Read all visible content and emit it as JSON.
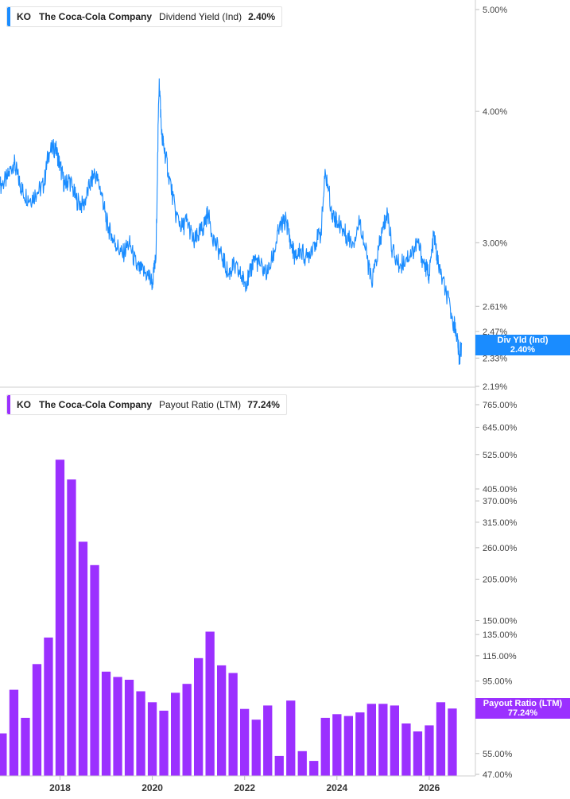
{
  "legends": [
    {
      "ticker": "KO",
      "company": "The Coca-Cola Company",
      "metric": "Dividend Yield (Ind)",
      "value": "2.40%",
      "color": "#1a8cff"
    },
    {
      "ticker": "KO",
      "company": "The Coca-Cola Company",
      "metric": "Payout Ratio (LTM)",
      "value": "77.24%",
      "color": "#9b30ff"
    }
  ],
  "badges": [
    {
      "line1": "Div Yld (Ind)",
      "line2": "2.40%",
      "color": "#1a8cff"
    },
    {
      "line1": "Payout Ratio (LTM)",
      "line2": "77.24%",
      "color": "#9b30ff"
    }
  ],
  "chart_data": [
    {
      "type": "line",
      "title": "",
      "series_label": "Dividend Yield (Ind)",
      "color": "#1a8cff",
      "y_scale": "log",
      "ylim": [
        2.19,
        5.0
      ],
      "y_ticks": [
        {
          "value": 5.0,
          "label": "5.00%"
        },
        {
          "value": 4.0,
          "label": "4.00%"
        },
        {
          "value": 3.0,
          "label": "3.00%"
        },
        {
          "value": 2.61,
          "label": "2.61%"
        },
        {
          "value": 2.47,
          "label": "2.47%"
        },
        {
          "value": 2.33,
          "label": "2.33%"
        },
        {
          "value": 2.19,
          "label": "2.19%"
        }
      ],
      "xlim": [
        2016.7,
        2027.0
      ],
      "x_ticks": [
        {
          "value": 2018,
          "label": "2018"
        },
        {
          "value": 2020,
          "label": "2020"
        },
        {
          "value": 2022,
          "label": "2022"
        },
        {
          "value": 2024,
          "label": "2024"
        },
        {
          "value": 2026,
          "label": "2026"
        }
      ],
      "x": [
        2016.7,
        2016.85,
        2017.0,
        2017.1,
        2017.2,
        2017.35,
        2017.5,
        2017.65,
        2017.75,
        2017.9,
        2018.0,
        2018.1,
        2018.2,
        2018.35,
        2018.5,
        2018.65,
        2018.75,
        2018.9,
        2019.0,
        2019.1,
        2019.2,
        2019.35,
        2019.5,
        2019.65,
        2019.75,
        2019.9,
        2020.0,
        2020.08,
        2020.15,
        2020.2,
        2020.25,
        2020.35,
        2020.5,
        2020.65,
        2020.75,
        2020.9,
        2021.0,
        2021.1,
        2021.2,
        2021.35,
        2021.5,
        2021.65,
        2021.75,
        2021.9,
        2022.0,
        2022.1,
        2022.2,
        2022.35,
        2022.5,
        2022.65,
        2022.75,
        2022.9,
        2023.0,
        2023.1,
        2023.2,
        2023.35,
        2023.5,
        2023.65,
        2023.75,
        2023.9,
        2024.0,
        2024.1,
        2024.2,
        2024.35,
        2024.5,
        2024.65,
        2024.75,
        2024.9,
        2025.0,
        2025.1,
        2025.2,
        2025.35,
        2025.5,
        2025.65,
        2025.75,
        2025.9,
        2026.0,
        2026.1,
        2026.2,
        2026.35,
        2026.5,
        2026.6,
        2026.65,
        2026.7
      ],
      "y": [
        3.4,
        3.45,
        3.58,
        3.45,
        3.35,
        3.3,
        3.35,
        3.4,
        3.65,
        3.7,
        3.55,
        3.4,
        3.45,
        3.3,
        3.25,
        3.4,
        3.5,
        3.35,
        3.15,
        3.05,
        3.0,
        2.92,
        3.0,
        2.85,
        2.82,
        2.8,
        2.75,
        2.9,
        4.3,
        3.8,
        3.7,
        3.5,
        3.2,
        3.1,
        3.15,
        3.0,
        3.05,
        3.1,
        3.2,
        3.0,
        2.92,
        2.8,
        2.85,
        2.8,
        2.75,
        2.78,
        2.9,
        2.85,
        2.8,
        2.95,
        3.1,
        3.15,
        3.0,
        2.9,
        2.95,
        2.9,
        3.0,
        3.05,
        3.5,
        3.2,
        3.15,
        3.1,
        3.05,
        3.0,
        3.15,
        2.9,
        2.75,
        2.95,
        3.1,
        3.2,
        2.95,
        2.85,
        2.9,
        2.95,
        3.0,
        2.85,
        2.8,
        3.05,
        2.85,
        2.7,
        2.55,
        2.45,
        2.33,
        2.4
      ]
    },
    {
      "type": "bar",
      "title": "",
      "series_label": "Payout Ratio (LTM)",
      "color": "#9b30ff",
      "y_scale": "log",
      "ylim": [
        47.0,
        765.0
      ],
      "y_ticks": [
        {
          "value": 765,
          "label": "765.00%"
        },
        {
          "value": 645,
          "label": "645.00%"
        },
        {
          "value": 525,
          "label": "525.00%"
        },
        {
          "value": 405,
          "label": "405.00%"
        },
        {
          "value": 370,
          "label": "370.00%"
        },
        {
          "value": 315,
          "label": "315.00%"
        },
        {
          "value": 260,
          "label": "260.00%"
        },
        {
          "value": 205,
          "label": "205.00%"
        },
        {
          "value": 150,
          "label": "150.00%"
        },
        {
          "value": 135,
          "label": "135.00%"
        },
        {
          "value": 115,
          "label": "115.00%"
        },
        {
          "value": 95,
          "label": "95.00%"
        },
        {
          "value": 55,
          "label": "55.00%"
        },
        {
          "value": 47,
          "label": "47.00%"
        }
      ],
      "xlim": [
        2016.7,
        2027.0
      ],
      "x_ticks": [
        {
          "value": 2018,
          "label": "2018"
        },
        {
          "value": 2020,
          "label": "2020"
        },
        {
          "value": 2022,
          "label": "2022"
        },
        {
          "value": 2024,
          "label": "2024"
        },
        {
          "value": 2026,
          "label": "2026"
        }
      ],
      "x": [
        2016.75,
        2017.0,
        2017.25,
        2017.5,
        2017.75,
        2018.0,
        2018.25,
        2018.5,
        2018.75,
        2019.0,
        2019.25,
        2019.5,
        2019.75,
        2020.0,
        2020.25,
        2020.5,
        2020.75,
        2021.0,
        2021.25,
        2021.5,
        2021.75,
        2022.0,
        2022.25,
        2022.5,
        2022.75,
        2023.0,
        2023.25,
        2023.5,
        2023.75,
        2024.0,
        2024.25,
        2024.5,
        2024.75,
        2025.0,
        2025.25,
        2025.5,
        2025.75,
        2026.0,
        2026.25,
        2026.5
      ],
      "values": [
        64,
        89,
        72,
        108,
        132,
        505,
        435,
        272,
        228,
        102,
        98,
        96,
        88,
        81,
        76,
        87,
        93,
        113,
        138,
        107,
        101,
        77,
        71,
        79,
        54,
        82,
        56,
        52,
        72,
        74,
        73,
        75,
        80,
        80,
        79,
        69,
        65,
        68,
        81,
        77.24
      ]
    }
  ]
}
